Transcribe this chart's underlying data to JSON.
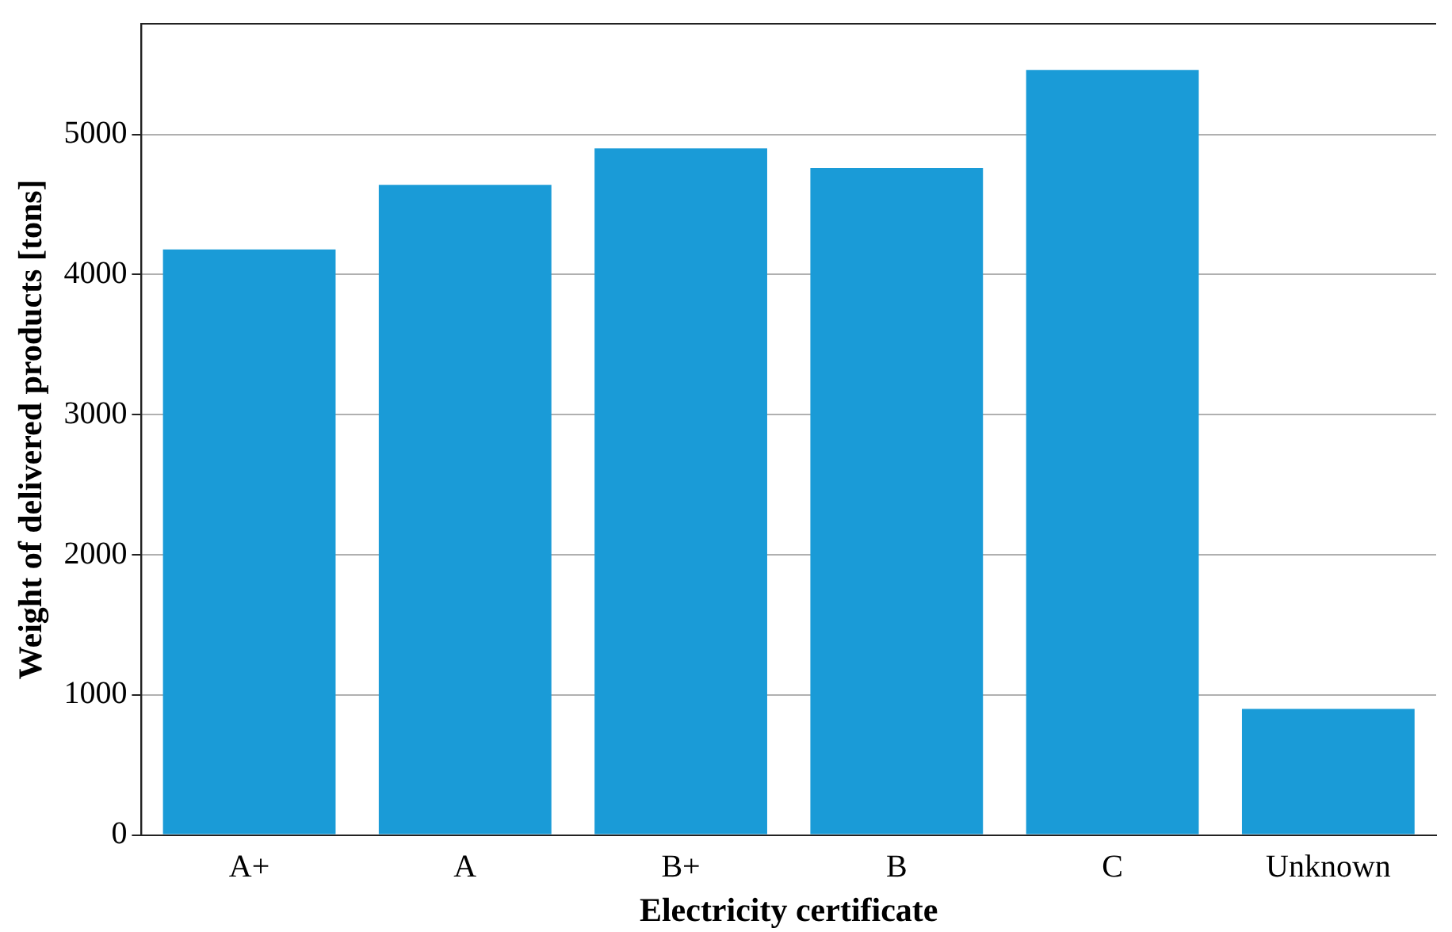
{
  "chart_data": {
    "type": "bar",
    "xlabel": "Electricity certificate",
    "ylabel": "Weight of delivered products [tons]",
    "categories": [
      "A+",
      "A",
      "B+",
      "B",
      "C",
      "Unknown"
    ],
    "values": [
      4180,
      4640,
      4900,
      4760,
      5460,
      900
    ],
    "color": "#1a9bd7",
    "ylim": [
      0,
      5790
    ],
    "yticks": [
      0,
      1000,
      2000,
      3000,
      4000,
      5000
    ],
    "grid": "y",
    "legend": false
  }
}
